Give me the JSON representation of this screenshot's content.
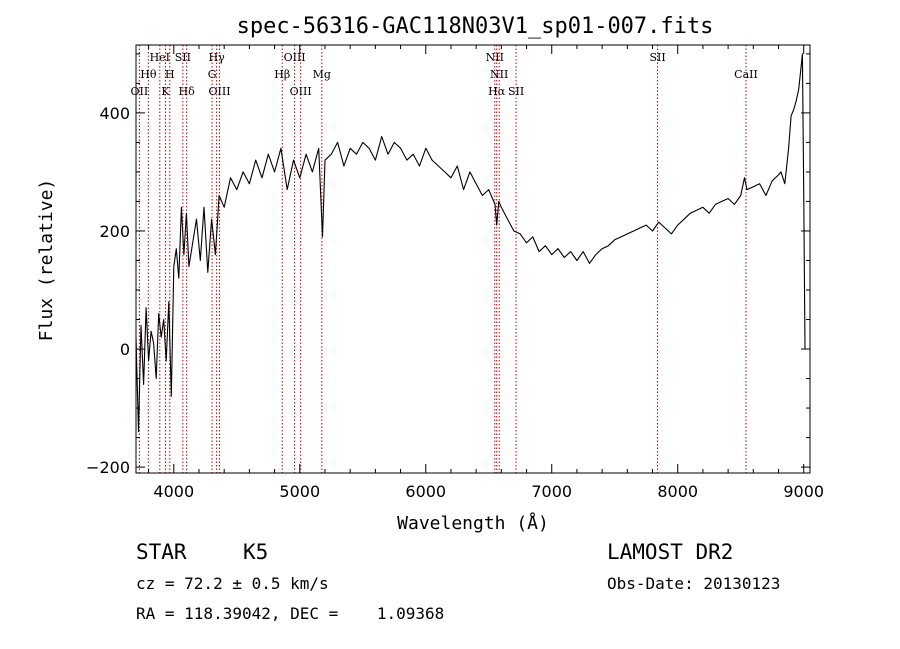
{
  "chart_data": {
    "type": "line",
    "title": "spec-56316-GAC118N03V1_sp01-007.fits",
    "xlabel": "Wavelength (Å)",
    "ylabel": "Flux (relative)",
    "xlim": [
      3700,
      9050
    ],
    "ylim": [
      -210,
      515
    ],
    "x_ticks": [
      4000,
      5000,
      6000,
      7000,
      8000,
      9000
    ],
    "x_tick_labels": [
      "4000",
      "5000",
      "6000",
      "7000",
      "8000",
      "9000"
    ],
    "y_ticks": [
      -200,
      0,
      200,
      400
    ],
    "y_tick_labels": [
      "−200",
      "0",
      "200",
      "400"
    ],
    "grid": false,
    "line_color": "#000000",
    "marker_color": "#cc0000",
    "series": [
      {
        "x": [
          3700,
          3720,
          3740,
          3760,
          3780,
          3800,
          3820,
          3840,
          3860,
          3880,
          3900,
          3920,
          3940,
          3960,
          3980,
          4000,
          4020,
          4040,
          4060,
          4080,
          4100,
          4120,
          4150,
          4180,
          4210,
          4240,
          4270,
          4300,
          4330,
          4360,
          4400,
          4450,
          4500,
          4550,
          4600,
          4650,
          4700,
          4750,
          4800,
          4850,
          4900,
          4950,
          5000,
          5050,
          5100,
          5150,
          5180,
          5200,
          5250,
          5300,
          5350,
          5400,
          5450,
          5500,
          5550,
          5600,
          5650,
          5700,
          5750,
          5800,
          5850,
          5900,
          5950,
          6000,
          6050,
          6100,
          6150,
          6200,
          6250,
          6300,
          6350,
          6400,
          6450,
          6500,
          6550,
          6563,
          6580,
          6600,
          6650,
          6700,
          6750,
          6800,
          6850,
          6900,
          6950,
          7000,
          7050,
          7100,
          7150,
          7200,
          7250,
          7300,
          7350,
          7400,
          7450,
          7500,
          7550,
          7600,
          7650,
          7700,
          7750,
          7800,
          7850,
          7900,
          7950,
          8000,
          8050,
          8100,
          8150,
          8200,
          8250,
          8300,
          8350,
          8400,
          8450,
          8500,
          8530,
          8550,
          8600,
          8650,
          8700,
          8750,
          8800,
          8820,
          8850,
          8880,
          8900,
          8920,
          8940,
          8960,
          8980,
          8990,
          9000,
          9010
        ],
        "y": [
          20,
          -140,
          40,
          -60,
          70,
          -20,
          30,
          10,
          -50,
          60,
          20,
          50,
          -20,
          80,
          -80,
          140,
          170,
          120,
          240,
          160,
          230,
          140,
          180,
          220,
          150,
          240,
          130,
          220,
          160,
          260,
          240,
          290,
          270,
          300,
          280,
          320,
          290,
          330,
          300,
          340,
          270,
          320,
          290,
          330,
          300,
          340,
          190,
          320,
          330,
          350,
          310,
          340,
          330,
          350,
          340,
          320,
          360,
          330,
          350,
          340,
          320,
          330,
          310,
          340,
          320,
          310,
          300,
          290,
          310,
          270,
          300,
          280,
          260,
          270,
          245,
          210,
          250,
          240,
          220,
          200,
          195,
          180,
          190,
          165,
          175,
          160,
          170,
          155,
          165,
          150,
          165,
          145,
          160,
          170,
          175,
          185,
          190,
          195,
          200,
          205,
          210,
          200,
          215,
          205,
          195,
          210,
          220,
          230,
          235,
          240,
          230,
          245,
          250,
          255,
          245,
          260,
          290,
          270,
          275,
          280,
          260,
          285,
          295,
          300,
          280,
          340,
          395,
          405,
          420,
          440,
          480,
          500,
          270,
          0
        ]
      }
    ],
    "line_markers": [
      {
        "wave": 3727,
        "label": "OII",
        "row": 3
      },
      {
        "wave": 3798,
        "label": "Hθ",
        "row": 2
      },
      {
        "wave": 3889,
        "label": "HeI",
        "row": 1
      },
      {
        "wave": 3934,
        "label": "K",
        "row": 3
      },
      {
        "wave": 3968,
        "label": "H",
        "row": 2
      },
      {
        "wave": 4072,
        "label": "SII",
        "row": 1
      },
      {
        "wave": 4102,
        "label": "Hδ",
        "row": 3
      },
      {
        "wave": 4304,
        "label": "G",
        "row": 2
      },
      {
        "wave": 4340,
        "label": "Hγ",
        "row": 1
      },
      {
        "wave": 4363,
        "label": "OIII",
        "row": 3
      },
      {
        "wave": 4861,
        "label": "Hβ",
        "row": 2
      },
      {
        "wave": 4959,
        "label": "OIII",
        "row": 1
      },
      {
        "wave": 5007,
        "label": "OIII",
        "row": 3
      },
      {
        "wave": 5175,
        "label": "Mg",
        "row": 2
      },
      {
        "wave": 6548,
        "label": "NII",
        "row": 1
      },
      {
        "wave": 6563,
        "label": "Hα",
        "row": 3
      },
      {
        "wave": 6583,
        "label": "NII",
        "row": 2
      },
      {
        "wave": 6717,
        "label": "SII",
        "row": 3
      },
      {
        "wave": 7840,
        "label": "SII",
        "row": 1
      },
      {
        "wave": 8542,
        "label": "CaII",
        "row": 2
      }
    ]
  },
  "info": {
    "class_label": "STAR",
    "subclass": "K5",
    "cz_line": "cz = 72.2 ± 0.5 km/s",
    "coords_line": "RA = 118.39042, DEC =    1.09368",
    "survey": "LAMOST DR2",
    "obs_date_line": "Obs-Date: 20130123"
  }
}
